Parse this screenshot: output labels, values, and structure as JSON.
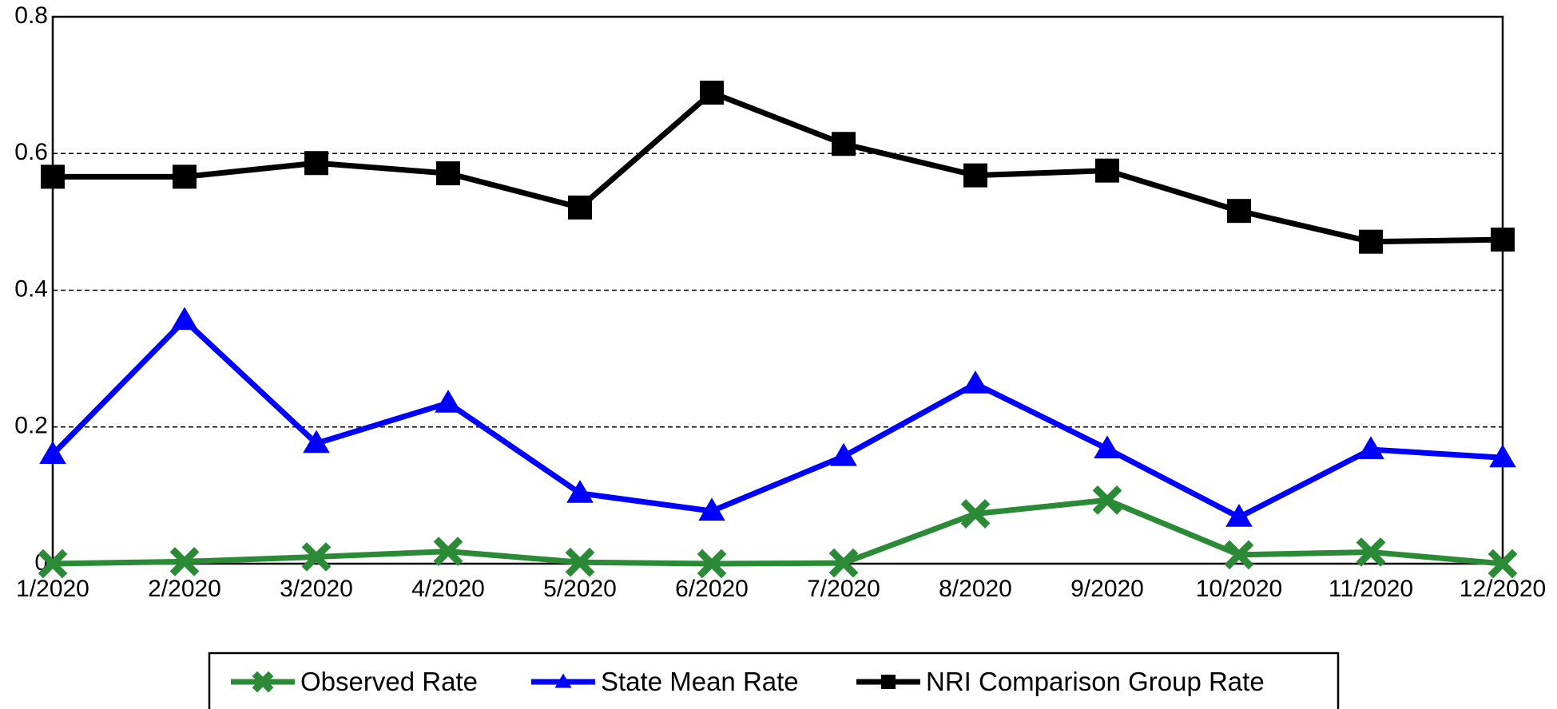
{
  "chart_data": {
    "type": "line",
    "categories": [
      "1/2020",
      "2/2020",
      "3/2020",
      "4/2020",
      "5/2020",
      "6/2020",
      "7/2020",
      "8/2020",
      "9/2020",
      "10/2020",
      "11/2020",
      "12/2020"
    ],
    "ylim": [
      0,
      0.8
    ],
    "yticks": [
      0,
      0.2,
      0.4,
      0.6,
      0.8
    ],
    "ytick_labels": [
      "0",
      "0.2",
      "0.4",
      "0.6",
      "0.8"
    ],
    "grid": "dashed horizontal at 0.2, 0.4, 0.6",
    "legend_position": "bottom",
    "series": [
      {
        "name": "Observed Rate",
        "color": "#2a8a35",
        "marker": "x",
        "values": [
          0.0,
          0.003,
          0.01,
          0.018,
          0.002,
          0.0,
          0.001,
          0.073,
          0.093,
          0.013,
          0.017,
          0.0
        ]
      },
      {
        "name": "State Mean Rate",
        "color": "#0000ff",
        "marker": "triangle",
        "values": [
          0.16,
          0.356,
          0.176,
          0.235,
          0.103,
          0.077,
          0.157,
          0.263,
          0.168,
          0.068,
          0.167,
          0.155
        ]
      },
      {
        "name": "NRI Comparison Group Rate",
        "color": "#000000",
        "marker": "square",
        "values": [
          0.566,
          0.566,
          0.586,
          0.571,
          0.521,
          0.689,
          0.614,
          0.568,
          0.575,
          0.516,
          0.471,
          0.474
        ]
      }
    ]
  }
}
